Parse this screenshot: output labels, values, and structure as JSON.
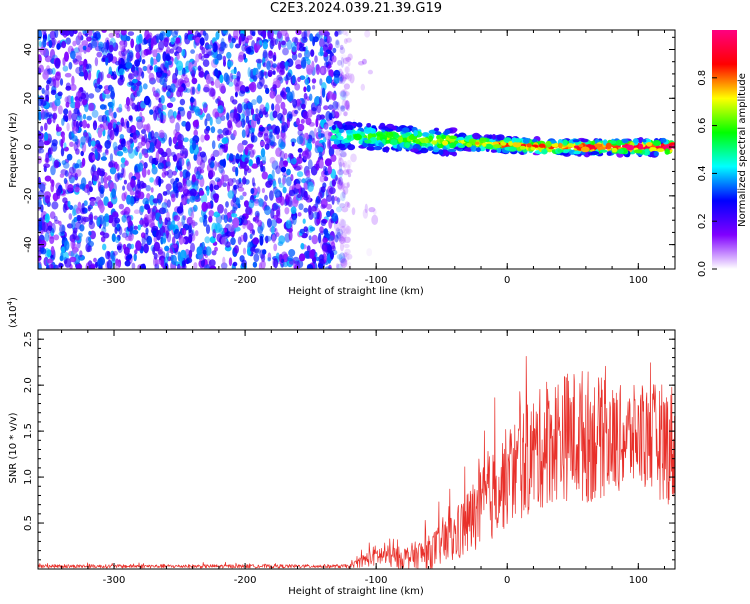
{
  "title": "C2E3.2024.039.21.39.G19",
  "chart_data": [
    {
      "type": "heatmap",
      "title": "C2E3.2024.039.21.39.G19",
      "xlabel": "Height of straight line (km)",
      "ylabel": "Frequency (Hz)",
      "xlim": [
        -358,
        128
      ],
      "ylim": [
        -50,
        48
      ],
      "xticks": [
        -300,
        -200,
        -100,
        0,
        100
      ],
      "yticks": [
        -40,
        -20,
        0,
        20,
        40
      ],
      "colorbar": {
        "label": "Normalized spectral amplitude",
        "range": [
          0,
          1
        ],
        "ticks": [
          "0.0",
          "0.2",
          "0.4",
          "0.6",
          "0.8"
        ],
        "tick_values": [
          0,
          0.2,
          0.4,
          0.6,
          0.8
        ],
        "colors": [
          "#ffffff",
          "#8000ff",
          "#0000ff",
          "#00ffff",
          "#00ff00",
          "#ffff00",
          "#ff0000",
          "#ff0080"
        ]
      },
      "regions": [
        {
          "description": "broadband noise",
          "x_range": [
            -358,
            -120
          ],
          "freq_range": [
            -50,
            48
          ],
          "amplitude": "low (0.1-0.4)"
        },
        {
          "description": "signal ridge",
          "x_range": [
            -133,
            128
          ],
          "freq_start": 5,
          "freq_end": 0,
          "amplitude": "high (0.5-1.0)"
        }
      ],
      "grid": false
    },
    {
      "type": "line",
      "xlabel": "Height of straight line (km)",
      "ylabel": "SNR (10 * v/v)",
      "yscale_label": "(x10",
      "yscale_exp": "4",
      "yscale_close": ")",
      "xlim": [
        -358,
        128
      ],
      "ylim": [
        0,
        2.6
      ],
      "xticks": [
        -300,
        -200,
        -100,
        0,
        100
      ],
      "yticks": [
        0.5,
        1.0,
        1.5,
        2.0,
        2.5
      ],
      "ytick_labels": [
        "0.5",
        "1.0",
        "1.5",
        "2.0",
        "2.5"
      ],
      "color": "#e8302a",
      "envelope": [
        {
          "x": -358,
          "mean": 0.03,
          "amp": 0.02
        },
        {
          "x": -120,
          "mean": 0.03,
          "amp": 0.02
        },
        {
          "x": -100,
          "mean": 0.15,
          "amp": 0.12
        },
        {
          "x": -80,
          "mean": 0.12,
          "amp": 0.12
        },
        {
          "x": -60,
          "mean": 0.18,
          "amp": 0.18
        },
        {
          "x": -40,
          "mean": 0.35,
          "amp": 0.3
        },
        {
          "x": -20,
          "mean": 0.65,
          "amp": 0.45
        },
        {
          "x": 0,
          "mean": 1.0,
          "amp": 0.55
        },
        {
          "x": 20,
          "mean": 1.25,
          "amp": 0.65
        },
        {
          "x": 40,
          "mean": 1.45,
          "amp": 0.7
        },
        {
          "x": 60,
          "mean": 1.45,
          "amp": 0.75
        },
        {
          "x": 80,
          "mean": 1.4,
          "amp": 0.6
        },
        {
          "x": 100,
          "mean": 1.45,
          "amp": 0.55
        },
        {
          "x": 128,
          "mean": 1.35,
          "amp": 0.7
        }
      ],
      "grid": false
    }
  ]
}
